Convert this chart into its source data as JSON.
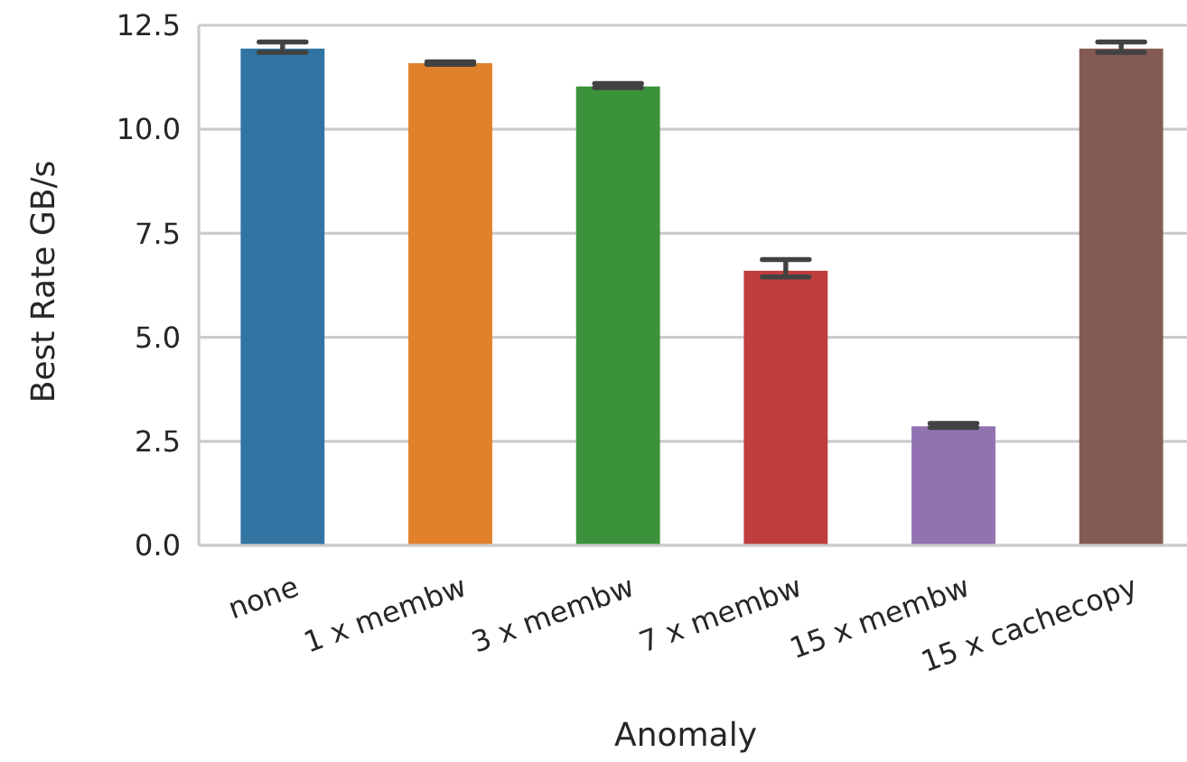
{
  "chart_data": {
    "type": "bar",
    "xlabel": "Anomaly",
    "ylabel": "Best Rate GB/s",
    "categories": [
      "none",
      "1 x membw",
      "3 x membw",
      "7 x membw",
      "15 x membw",
      "15 x cachecopy"
    ],
    "values": [
      11.94,
      11.59,
      11.03,
      6.6,
      2.86,
      11.94
    ],
    "errors": [
      [
        11.85,
        12.1
      ],
      [
        11.56,
        11.62
      ],
      [
        11.0,
        11.1
      ],
      [
        6.45,
        6.87
      ],
      [
        2.83,
        2.93
      ],
      [
        11.85,
        12.1
      ]
    ],
    "colors": [
      "#3274a1",
      "#e1812c",
      "#3a923a",
      "#c03d3e",
      "#9372b2",
      "#845b53"
    ],
    "ylim": [
      0,
      12.5
    ],
    "yticks": [
      {
        "value": 0,
        "label": "0.0"
      },
      {
        "value": 2.5,
        "label": "2.5"
      },
      {
        "value": 5,
        "label": "5.0"
      },
      {
        "value": 7.5,
        "label": "7.5"
      },
      {
        "value": 10,
        "label": "10.0"
      },
      {
        "value": 12.5,
        "label": "12.5"
      }
    ],
    "grid": "y"
  }
}
